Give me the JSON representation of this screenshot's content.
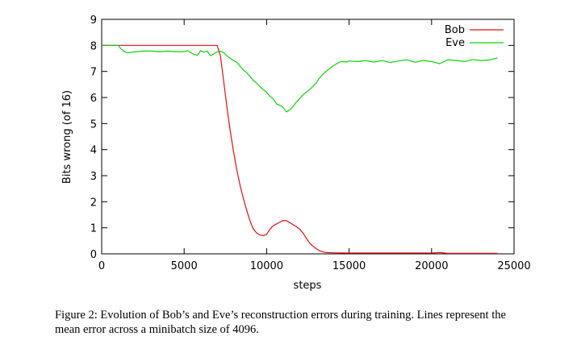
{
  "chart_data": {
    "type": "line",
    "title": "",
    "xlabel": "steps",
    "ylabel": "Bits wrong (of 16)",
    "xlim": [
      0,
      25000
    ],
    "ylim": [
      0,
      9
    ],
    "xticks": [
      0,
      5000,
      10000,
      15000,
      20000,
      25000
    ],
    "yticks": [
      0,
      1,
      2,
      3,
      4,
      5,
      6,
      7,
      8,
      9
    ],
    "grid": false,
    "legend_position": "top-right",
    "series": [
      {
        "name": "Bob",
        "color": "#e01010",
        "x": [
          0,
          1000,
          3000,
          5000,
          7000,
          7200,
          7400,
          7600,
          7800,
          8000,
          8200,
          8400,
          8600,
          8800,
          9000,
          9200,
          9400,
          9600,
          9800,
          10000,
          10200,
          10400,
          10600,
          10800,
          11000,
          11200,
          11400,
          11600,
          11800,
          12000,
          12200,
          12400,
          12600,
          12800,
          13000,
          13200,
          13400,
          13600,
          14000,
          15000,
          16000,
          17000,
          18000,
          19000,
          20000,
          20500,
          21000,
          22000,
          23000,
          24000
        ],
        "y": [
          8.0,
          8.0,
          8.0,
          8.0,
          8.0,
          7.6,
          6.6,
          5.6,
          4.7,
          3.9,
          3.2,
          2.6,
          2.1,
          1.65,
          1.25,
          0.95,
          0.8,
          0.72,
          0.7,
          0.75,
          0.95,
          1.08,
          1.15,
          1.22,
          1.28,
          1.27,
          1.2,
          1.12,
          1.05,
          0.95,
          0.8,
          0.6,
          0.42,
          0.3,
          0.2,
          0.12,
          0.08,
          0.05,
          0.04,
          0.03,
          0.03,
          0.03,
          0.03,
          0.03,
          0.03,
          0.05,
          0.02,
          0.02,
          0.02,
          0.02
        ]
      },
      {
        "name": "Eve",
        "color": "#10d010",
        "x": [
          0,
          1000,
          1200,
          1400,
          1600,
          2000,
          2500,
          3000,
          3500,
          4000,
          4500,
          5000,
          5200,
          5400,
          5600,
          5800,
          6000,
          6200,
          6400,
          6600,
          6800,
          7000,
          7200,
          7400,
          7600,
          7800,
          8000,
          8200,
          8400,
          8600,
          8800,
          9000,
          9200,
          9400,
          9600,
          9800,
          10000,
          10200,
          10400,
          10600,
          10800,
          11000,
          11200,
          11400,
          11600,
          11800,
          12000,
          12200,
          12400,
          12600,
          12800,
          13000,
          13200,
          13400,
          13600,
          13800,
          14000,
          14200,
          14400,
          14600,
          14800,
          15000,
          15500,
          16000,
          16500,
          17000,
          17500,
          18000,
          18500,
          19000,
          19500,
          20000,
          20500,
          21000,
          21500,
          22000,
          22500,
          23000,
          23500,
          24000
        ],
        "y": [
          8.0,
          8.0,
          7.85,
          7.75,
          7.72,
          7.75,
          7.78,
          7.78,
          7.76,
          7.78,
          7.76,
          7.76,
          7.8,
          7.72,
          7.65,
          7.62,
          7.8,
          7.74,
          7.78,
          7.6,
          7.68,
          7.75,
          7.78,
          7.72,
          7.6,
          7.5,
          7.42,
          7.35,
          7.2,
          7.05,
          6.95,
          6.8,
          6.65,
          6.55,
          6.42,
          6.3,
          6.2,
          6.05,
          5.95,
          5.75,
          5.7,
          5.62,
          5.45,
          5.52,
          5.65,
          5.82,
          5.95,
          6.1,
          6.2,
          6.3,
          6.42,
          6.55,
          6.75,
          6.88,
          7.0,
          7.1,
          7.2,
          7.28,
          7.35,
          7.38,
          7.36,
          7.4,
          7.38,
          7.42,
          7.36,
          7.42,
          7.34,
          7.4,
          7.45,
          7.35,
          7.42,
          7.38,
          7.3,
          7.45,
          7.42,
          7.38,
          7.46,
          7.42,
          7.44,
          7.52
        ]
      }
    ]
  },
  "caption": {
    "line1": "Figure 2: Evolution of Bob’s and Eve’s reconstruction errors during training. Lines represent the",
    "line2": "mean error across a minibatch size of 4096."
  }
}
